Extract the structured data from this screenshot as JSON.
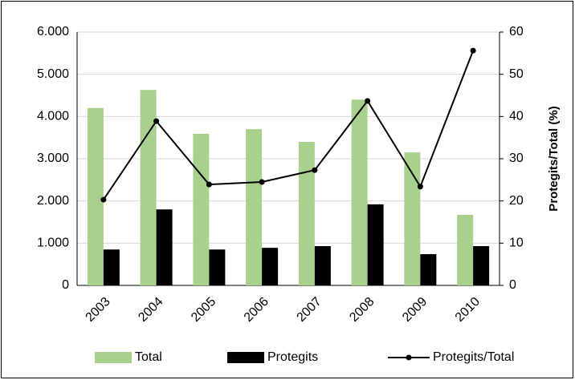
{
  "chart_data": {
    "type": "bar",
    "y2_label": "Protegits/Total (%)",
    "categories": [
      "2003",
      "2004",
      "2005",
      "2006",
      "2007",
      "2008",
      "2009",
      "2010"
    ],
    "series": [
      {
        "name": "Total",
        "type": "bar",
        "color": "#a9d18e",
        "values": [
          4200,
          4630,
          3590,
          3700,
          3400,
          4400,
          3150,
          1670
        ]
      },
      {
        "name": "Protegits",
        "type": "bar",
        "color": "#000000",
        "values": [
          850,
          1800,
          850,
          890,
          930,
          1920,
          740,
          930
        ]
      },
      {
        "name": "Protegits/Total",
        "type": "line",
        "axis": "y2",
        "color": "#000000",
        "values": [
          20.3,
          38.9,
          23.9,
          24.5,
          27.3,
          43.7,
          23.4,
          55.6
        ]
      }
    ],
    "ylim": [
      0,
      6000
    ],
    "yticks": [
      0,
      {
        "value": 1000,
        "label": "1.000"
      },
      {
        "value": 2000,
        "label": "2.000"
      },
      {
        "value": 3000,
        "label": "3.000"
      },
      {
        "value": 4000,
        "label": "4.000"
      },
      {
        "value": 5000,
        "label": "5.000"
      },
      {
        "value": 6000,
        "label": "6.000"
      }
    ],
    "y2lim": [
      0,
      60
    ],
    "y2ticks": [
      0,
      10,
      20,
      30,
      40,
      50,
      60
    ],
    "grid": true,
    "legend": "bottom"
  }
}
